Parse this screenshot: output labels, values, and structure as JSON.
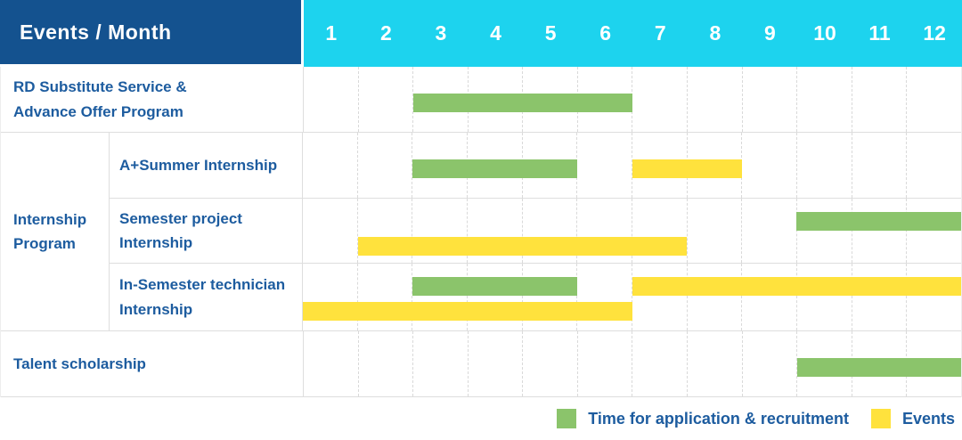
{
  "header": {
    "title": "Events / Month",
    "months": [
      "1",
      "2",
      "3",
      "4",
      "5",
      "6",
      "7",
      "8",
      "9",
      "10",
      "11",
      "12"
    ]
  },
  "group": {
    "label": "Internship Program"
  },
  "rows": [
    {
      "label": "RD Substitute Service & Advance Offer Program"
    },
    {
      "label": "A+Summer Internship"
    },
    {
      "label": "Semester project Internship"
    },
    {
      "label": "In-Semester technician Internship"
    },
    {
      "label": "Talent scholarship"
    }
  ],
  "legend": [
    {
      "label": "Time for application & recruitment",
      "color_key": "green"
    },
    {
      "label": "Events",
      "color_key": "yellow"
    }
  ],
  "colors": {
    "green": "#8bc46b",
    "yellow": "#ffe23d",
    "header_blue": "#14528f",
    "header_cyan": "#1dd3ee",
    "text_blue": "#1d5c9f",
    "grid": "#dedede"
  },
  "chart_data": {
    "type": "gantt",
    "x_unit": "month",
    "x_range": [
      1,
      12
    ],
    "title": "Events / Month",
    "legend": {
      "green": "Time for application & recruitment",
      "yellow": "Events"
    },
    "rows": [
      "RD Substitute Service & Advance Offer Program",
      "A+Summer Internship",
      "Semester project Internship",
      "In-Semester technician Internship",
      "Talent scholarship"
    ],
    "bars": [
      {
        "row": 1,
        "task": "RD Substitute Service & Advance Offer Program",
        "color": "green",
        "start_month": 3,
        "end_month": 6,
        "line": "single"
      },
      {
        "row": 2,
        "task": "A+Summer Internship",
        "color": "green",
        "start_month": 3,
        "end_month": 5,
        "line": "single"
      },
      {
        "row": 2,
        "task": "A+Summer Internship",
        "color": "yellow",
        "start_month": 7,
        "end_month": 8,
        "line": "single"
      },
      {
        "row": 3,
        "task": "Semester project Internship",
        "color": "green",
        "start_month": 10,
        "end_month": 12,
        "line": "top"
      },
      {
        "row": 3,
        "task": "Semester project Internship",
        "color": "yellow",
        "start_month": 2,
        "end_month": 7,
        "line": "bottom"
      },
      {
        "row": 4,
        "task": "In-Semester technician Internship",
        "color": "green",
        "start_month": 3,
        "end_month": 5,
        "line": "top"
      },
      {
        "row": 4,
        "task": "In-Semester technician Internship",
        "color": "yellow",
        "start_month": 7,
        "end_month": 12,
        "line": "top"
      },
      {
        "row": 4,
        "task": "In-Semester technician Internship",
        "color": "yellow",
        "start_month": 1,
        "end_month": 6,
        "line": "bottom"
      },
      {
        "row": 5,
        "task": "Talent scholarship",
        "color": "green",
        "start_month": 10,
        "end_month": 12,
        "line": "single"
      }
    ]
  }
}
